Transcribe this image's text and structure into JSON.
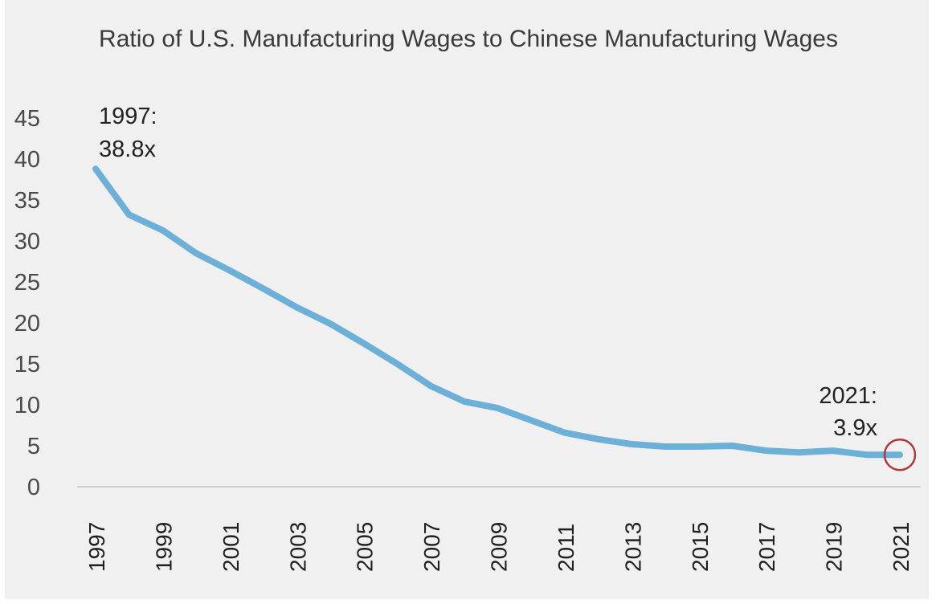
{
  "chart_data": {
    "type": "line",
    "title": "Ratio of U.S. Manufacturing Wages to Chinese Manufacturing Wages",
    "xlabel": "",
    "ylabel": "",
    "ylim": [
      0,
      45
    ],
    "yticks": [
      "0",
      "5",
      "10",
      "15",
      "20",
      "25",
      "30",
      "35",
      "40",
      "45"
    ],
    "xticks": [
      "1997",
      "1999",
      "2001",
      "2003",
      "2005",
      "2007",
      "2009",
      "2011",
      "2013",
      "2015",
      "2017",
      "2019",
      "2021"
    ],
    "x": [
      1997,
      1998,
      1999,
      2000,
      2001,
      2002,
      2003,
      2004,
      2005,
      2006,
      2007,
      2008,
      2009,
      2010,
      2011,
      2012,
      2013,
      2014,
      2015,
      2016,
      2017,
      2018,
      2019,
      2020,
      2021
    ],
    "series": [
      {
        "values": [
          38.8,
          33.2,
          31.3,
          28.5,
          26.4,
          24.2,
          21.9,
          19.9,
          17.5,
          15.0,
          12.3,
          10.4,
          9.6,
          8.1,
          6.6,
          5.8,
          5.2,
          4.9,
          4.9,
          5.0,
          4.4,
          4.2,
          4.4,
          3.9,
          3.9
        ],
        "color": "#6cb0d8"
      }
    ],
    "annotations": [
      {
        "year": 1997,
        "line1": "1997:",
        "line2": "38.8x"
      },
      {
        "year": 2021,
        "line1": "2021:",
        "line2": "3.9x"
      }
    ],
    "highlight_color": "#b03a3a",
    "grid": false
  }
}
